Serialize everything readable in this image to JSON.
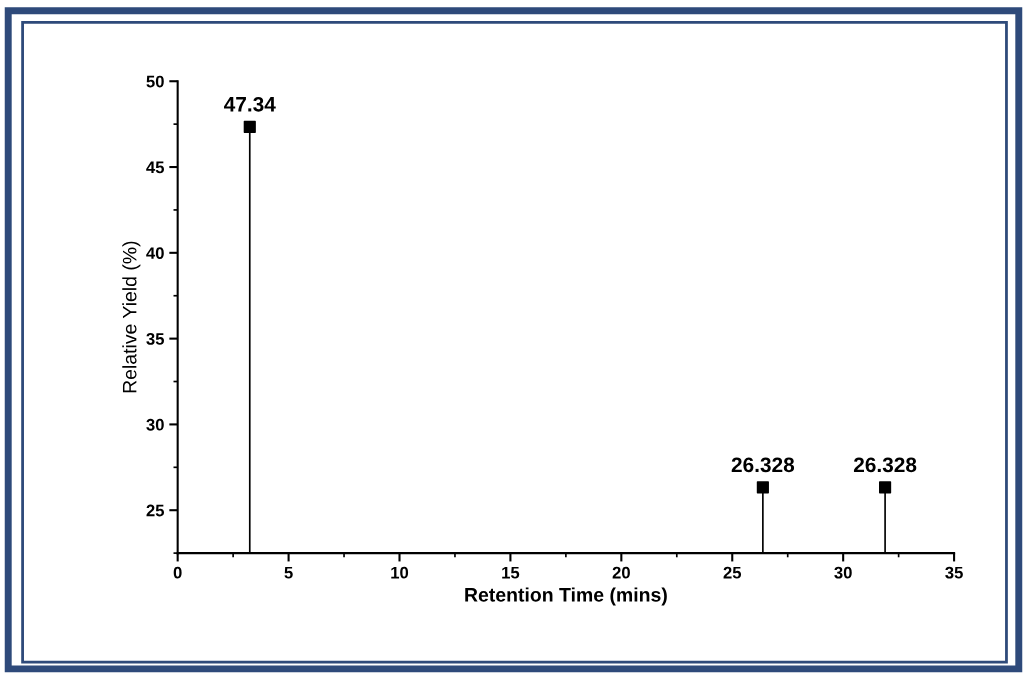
{
  "chart_data": {
    "type": "lollipop",
    "xlabel": "Retention Time (mins)",
    "ylabel": "Relative Yield (%)",
    "x": [
      3.25,
      26.38,
      31.89
    ],
    "values": [
      47.34,
      26.328,
      26.328
    ],
    "color": "#000000",
    "marker": "square",
    "data_labels": true,
    "xlim": [
      0,
      35
    ],
    "xticks": [
      0,
      5,
      10,
      15,
      20,
      25,
      30,
      35
    ],
    "ylim": [
      22.5,
      50
    ],
    "yticks": [
      25,
      30,
      35,
      40,
      45,
      50
    ],
    "grid": false,
    "legend": false
  }
}
